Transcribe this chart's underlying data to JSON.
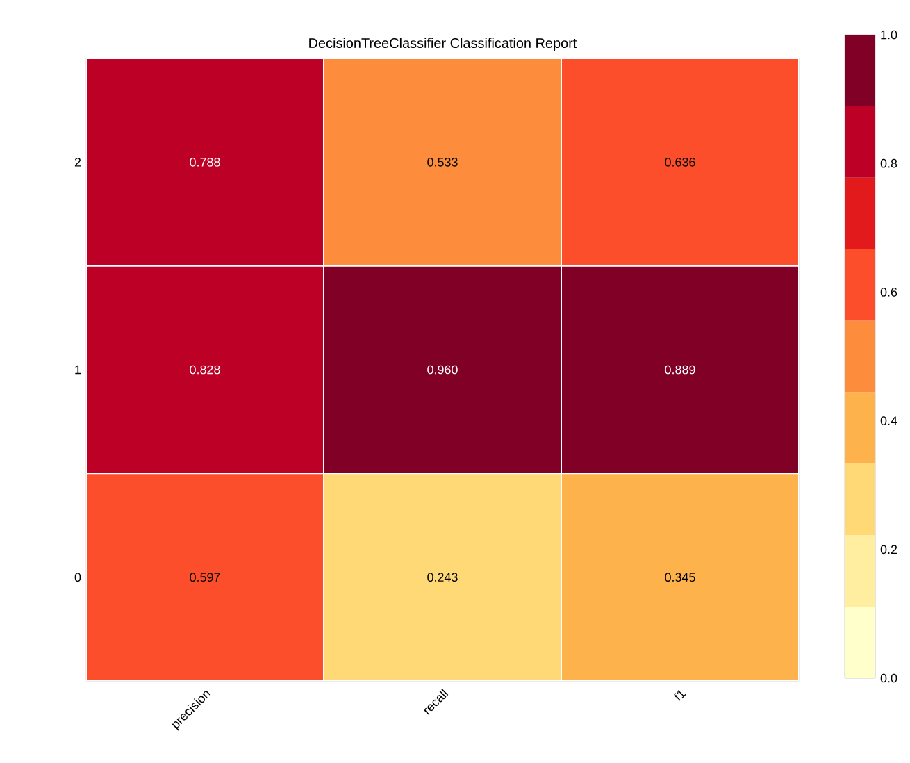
{
  "chart_data": {
    "type": "heatmap",
    "title": "DecisionTreeClassifier Classification Report",
    "categories": [
      "precision",
      "recall",
      "f1"
    ],
    "y_categories": [
      "2",
      "1",
      "0"
    ],
    "cells": [
      [
        0.788,
        0.533,
        0.636
      ],
      [
        0.828,
        0.96,
        0.889
      ],
      [
        0.597,
        0.243,
        0.345
      ]
    ],
    "cell_labels": [
      [
        "0.788",
        "0.533",
        "0.636"
      ],
      [
        "0.828",
        "0.960",
        "0.889"
      ],
      [
        "0.597",
        "0.243",
        "0.345"
      ]
    ],
    "colors": [
      "#ffffcc",
      "#ffeda0",
      "#fed976",
      "#feb24c",
      "#fd8d3c",
      "#fc4e2a",
      "#e31a1c",
      "#bd0026",
      "#800026"
    ],
    "clim": [
      0,
      1
    ],
    "cticks": [
      {
        "value": 0,
        "label": "0.0"
      },
      {
        "value": 0.2,
        "label": "0.2"
      },
      {
        "value": 0.4,
        "label": "0.4"
      },
      {
        "value": 0.6,
        "label": "0.6"
      },
      {
        "value": 0.8,
        "label": "0.8"
      },
      {
        "value": 1,
        "label": "1.0"
      }
    ]
  }
}
